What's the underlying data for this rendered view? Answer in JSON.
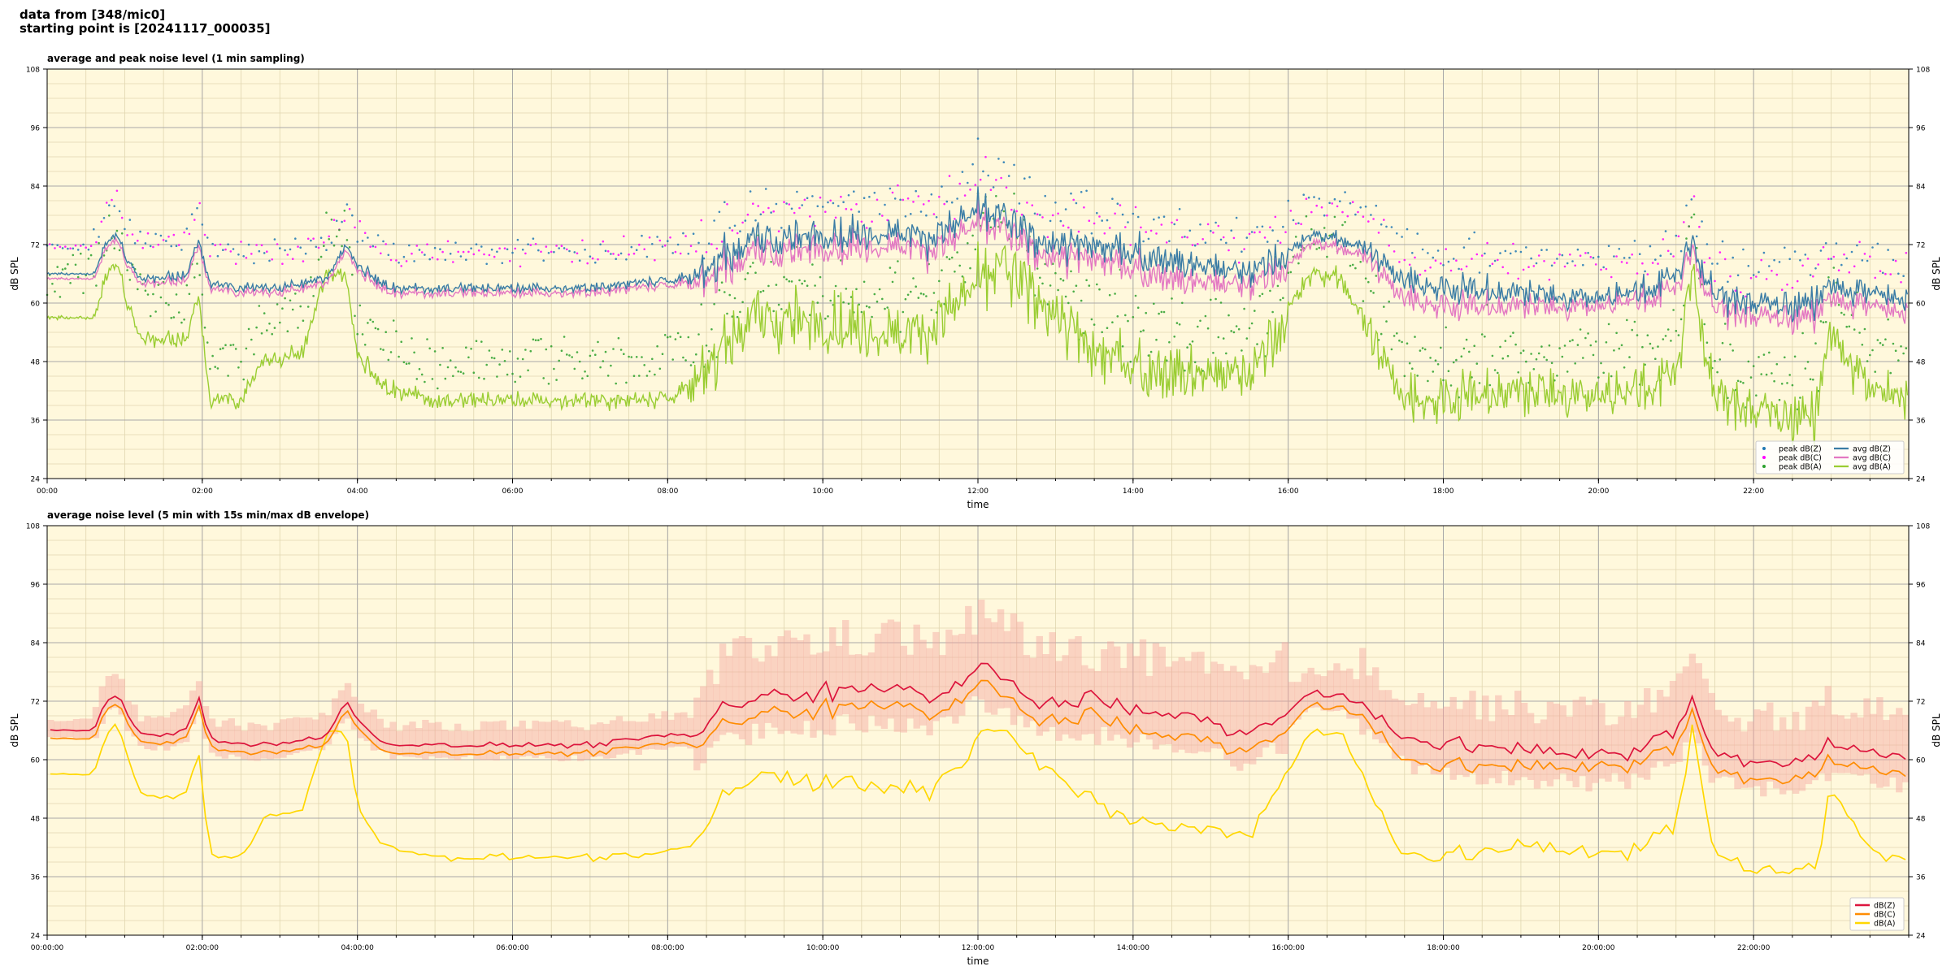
{
  "header": {
    "line1": "data from [348/mic0]",
    "line2": "starting point is [20241117_000035]"
  },
  "chart_data": [
    {
      "type": "line",
      "title": "average and peak noise level (1 min sampling)",
      "xlabel": "time",
      "ylabel": "dB SPL",
      "x_unit": "hours",
      "xlim": [
        0,
        24
      ],
      "ylim": [
        24,
        108
      ],
      "x_ticks": [
        "00:00",
        "02:00",
        "04:00",
        "06:00",
        "08:00",
        "10:00",
        "12:00",
        "14:00",
        "16:00",
        "18:00",
        "20:00",
        "22:00"
      ],
      "y_ticks": [
        24,
        36,
        48,
        60,
        72,
        84,
        96,
        108
      ],
      "grid": true,
      "background": "#fff8dc",
      "legend_position": "lower-right",
      "legend_columns": 2,
      "series": [
        {
          "name": "peak dB(Z)",
          "kind": "scatter",
          "color": "#1f77b4",
          "base": "Z",
          "offset": 5
        },
        {
          "name": "peak dB(C)",
          "kind": "scatter",
          "color": "#ff00ff",
          "base": "C",
          "offset": 6
        },
        {
          "name": "peak dB(A)",
          "kind": "scatter",
          "color": "#2ca02c",
          "base": "A",
          "offset": 6
        },
        {
          "name": "avg dB(Z)",
          "kind": "line",
          "color": "#3a7ca5",
          "base": "Z"
        },
        {
          "name": "avg dB(C)",
          "kind": "line",
          "color": "#e377c2",
          "base": "C"
        },
        {
          "name": "avg dB(A)",
          "kind": "line",
          "color": "#9acd32",
          "base": "A"
        }
      ],
      "profile": {
        "x": [
          0,
          0.6,
          0.75,
          0.9,
          1.0,
          1.2,
          1.5,
          1.8,
          1.95,
          2.1,
          2.5,
          2.8,
          3.3,
          3.6,
          3.85,
          4.0,
          4.3,
          4.5,
          5.0,
          6.0,
          7.0,
          7.5,
          8.0,
          8.4,
          8.7,
          9.2,
          10.0,
          11.0,
          11.5,
          12.0,
          12.3,
          12.8,
          13.5,
          14.5,
          15.5,
          16.0,
          16.3,
          16.7,
          17.0,
          17.5,
          18.0,
          19.0,
          20.0,
          20.5,
          21.0,
          21.2,
          21.5,
          22.0,
          22.8,
          23.0,
          23.3,
          23.5,
          24.0
        ],
        "Z": [
          66,
          66,
          72,
          74,
          70,
          65,
          65,
          66,
          73,
          64,
          63,
          63,
          64,
          65,
          72,
          68,
          64,
          63,
          63,
          63,
          63,
          64,
          65,
          65,
          70,
          73,
          74,
          75,
          73,
          79,
          78,
          72,
          72,
          69,
          66,
          70,
          74,
          73,
          71,
          65,
          63,
          62,
          61,
          62,
          66,
          72,
          61,
          60,
          60,
          64,
          62,
          62,
          60
        ],
        "C": [
          65,
          65,
          71,
          73,
          69,
          64,
          64,
          65,
          72,
          63,
          62,
          62,
          63,
          64,
          71,
          67,
          63,
          62,
          62,
          62,
          62,
          63,
          64,
          64,
          68,
          71,
          72,
          73,
          71,
          77,
          76,
          70,
          70,
          66,
          64,
          68,
          73,
          72,
          70,
          62,
          60,
          60,
          60,
          61,
          64,
          71,
          59,
          58,
          58,
          62,
          60,
          60,
          58
        ],
        "A": [
          57,
          57,
          65,
          68,
          62,
          53,
          52,
          53,
          62,
          40,
          40,
          48,
          50,
          66,
          66,
          50,
          43,
          42,
          40,
          40,
          40,
          40,
          41,
          43,
          52,
          57,
          56,
          54,
          55,
          64,
          68,
          60,
          50,
          46,
          45,
          58,
          66,
          65,
          55,
          41,
          40,
          42,
          41,
          42,
          46,
          66,
          40,
          38,
          37,
          55,
          46,
          42,
          40
        ]
      }
    },
    {
      "type": "line",
      "title": "average noise level (5 min with 15s min/max dB envelope)",
      "xlabel": "time",
      "ylabel": "dB SPL",
      "x_unit": "hours",
      "xlim": [
        0,
        24
      ],
      "ylim": [
        24,
        108
      ],
      "x_ticks": [
        "00:00:00",
        "02:00:00",
        "04:00:00",
        "06:00:00",
        "08:00:00",
        "10:00:00",
        "12:00:00",
        "14:00:00",
        "16:00:00",
        "18:00:00",
        "20:00:00",
        "22:00:00"
      ],
      "y_ticks": [
        24,
        36,
        48,
        60,
        72,
        84,
        96,
        108
      ],
      "grid": true,
      "background": "#fff8dc",
      "legend_position": "lower-right",
      "legend_columns": 1,
      "envelope_color": "#f4a6a0",
      "series": [
        {
          "name": "dB(Z)",
          "kind": "line",
          "color": "#dc143c",
          "base": "Z"
        },
        {
          "name": "dB(C)",
          "kind": "line",
          "color": "#ff8c00",
          "base": "C"
        },
        {
          "name": "dB(A)",
          "kind": "line",
          "color": "#ffd700",
          "base": "A"
        }
      ]
    }
  ]
}
